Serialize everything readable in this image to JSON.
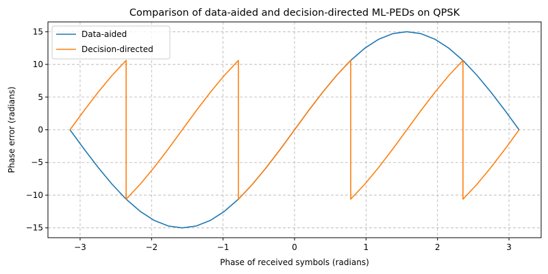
{
  "chart_data": {
    "type": "line",
    "title": "Comparison of data-aided and decision-directed ML-PEDs on QPSK",
    "xlabel": "Phase of received symbols (radians)",
    "ylabel": "Phase error (radians)",
    "xlim": [
      -3.45,
      3.45
    ],
    "ylim": [
      -16.5,
      16.5
    ],
    "xticks": [
      -3,
      -2,
      -1,
      0,
      1,
      2,
      3
    ],
    "xtick_labels": [
      "−3",
      "−2",
      "−1",
      "0",
      "1",
      "2",
      "3"
    ],
    "yticks": [
      -15,
      -10,
      -5,
      0,
      5,
      10,
      15
    ],
    "ytick_labels": [
      "−15",
      "−10",
      "−5",
      "0",
      "5",
      "10",
      "15"
    ],
    "grid": true,
    "legend_position": "upper-left",
    "series": [
      {
        "name": "Data-aided",
        "color": "#1f77b4",
        "x": [
          -3.1416,
          -2.9452,
          -2.7489,
          -2.5525,
          -2.3562,
          -2.1598,
          -1.9635,
          -1.7671,
          -1.5708,
          -1.3744,
          -1.1781,
          -0.9817,
          -0.7854,
          -0.589,
          -0.3927,
          -0.1963,
          0.0,
          0.1963,
          0.3927,
          0.589,
          0.7854,
          0.9817,
          1.1781,
          1.3744,
          1.5708,
          1.7671,
          1.9635,
          2.1598,
          2.3562,
          2.5525,
          2.7489,
          2.9452,
          3.1416
        ],
        "y": [
          0.0,
          -2.93,
          -5.74,
          -8.33,
          -10.61,
          -12.47,
          -13.86,
          -14.71,
          -15.0,
          -14.71,
          -13.86,
          -12.47,
          -10.61,
          -8.33,
          -5.74,
          -2.93,
          0.0,
          2.93,
          5.74,
          8.33,
          10.61,
          12.47,
          13.86,
          14.71,
          15.0,
          14.71,
          13.86,
          12.47,
          10.61,
          8.33,
          5.74,
          2.93,
          0.0
        ]
      },
      {
        "name": "Decision-directed",
        "color": "#ff7f0e",
        "x": [
          -3.1416,
          -2.9452,
          -2.7489,
          -2.5525,
          -2.3562,
          -2.3562,
          -2.1598,
          -1.9635,
          -1.7671,
          -1.5708,
          -1.3744,
          -1.1781,
          -0.9817,
          -0.7854,
          -0.7854,
          -0.589,
          -0.3927,
          -0.1963,
          0.0,
          0.1963,
          0.3927,
          0.589,
          0.7854,
          0.7854,
          0.9817,
          1.1781,
          1.3744,
          1.5708,
          1.7671,
          1.9635,
          2.1598,
          2.3562,
          2.3562,
          2.5525,
          2.7489,
          2.9452,
          3.1416
        ],
        "y": [
          0.0,
          2.93,
          5.74,
          8.33,
          10.61,
          -10.61,
          -8.33,
          -5.74,
          -2.93,
          0.0,
          2.93,
          5.74,
          8.33,
          10.61,
          -10.61,
          -8.33,
          -5.74,
          -2.93,
          0.0,
          2.93,
          5.74,
          8.33,
          10.61,
          -10.61,
          -8.33,
          -5.74,
          -2.93,
          0.0,
          2.93,
          5.74,
          8.33,
          10.61,
          -10.61,
          -8.33,
          -5.74,
          -2.93,
          0.0
        ]
      }
    ]
  }
}
